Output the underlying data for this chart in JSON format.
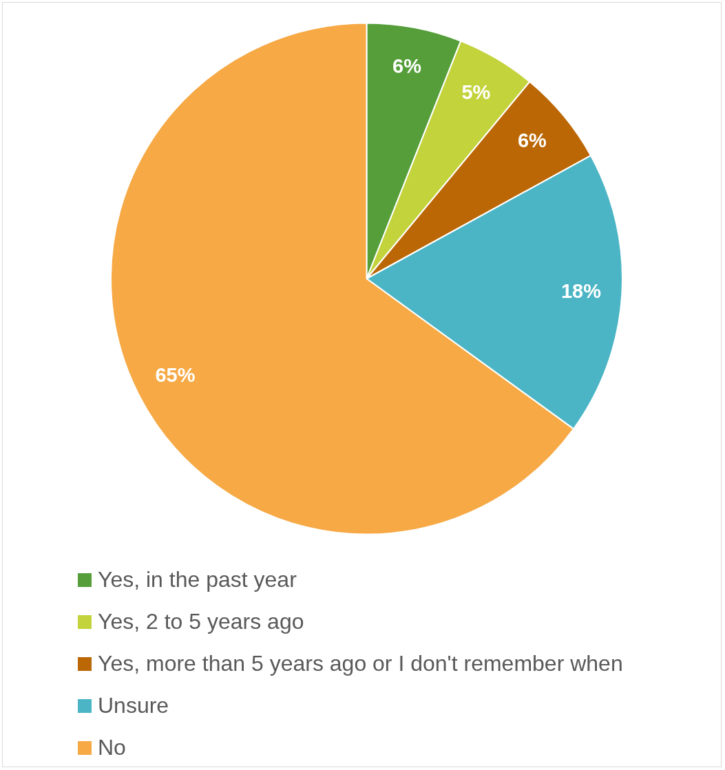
{
  "chart_data": {
    "type": "pie",
    "categories": [
      "Yes, in the past year",
      "Yes, 2 to 5 years ago",
      "Yes, more than 5 years ago or I don't remember when",
      "Unsure",
      "No"
    ],
    "values": [
      6,
      5,
      6,
      18,
      65
    ],
    "colors": [
      "#559e3a",
      "#c3d33c",
      "#bb6705",
      "#4bb5c5",
      "#f6a945"
    ],
    "value_labels": [
      "6%",
      "5%",
      "6%",
      "18%",
      "65%"
    ],
    "legend": "bottom"
  }
}
